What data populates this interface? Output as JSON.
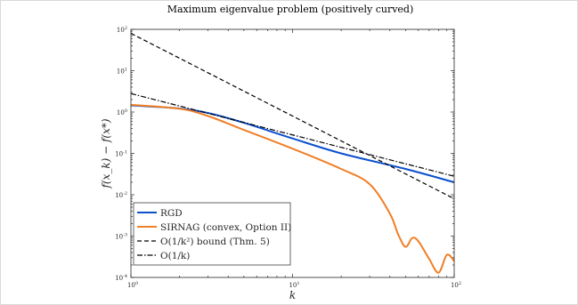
{
  "chart_data": {
    "type": "line",
    "title": "Maximum eigenvalue problem (positively curved)",
    "xlabel": "k",
    "ylabel": "f(x_k) − f(x*)",
    "xscale": "log",
    "yscale": "log",
    "xlim": [
      1,
      100
    ],
    "ylim": [
      0.0001,
      100
    ],
    "grid": false,
    "legend_position": "bottom-left",
    "x_ticks": [
      {
        "value": 1,
        "base": "10",
        "exp": "0"
      },
      {
        "value": 10,
        "base": "10",
        "exp": "1"
      },
      {
        "value": 100,
        "base": "10",
        "exp": "2"
      }
    ],
    "y_ticks": [
      {
        "value": 0.0001,
        "base": "10",
        "exp": "-4"
      },
      {
        "value": 0.001,
        "base": "10",
        "exp": "-3"
      },
      {
        "value": 0.01,
        "base": "10",
        "exp": "-2"
      },
      {
        "value": 0.1,
        "base": "10",
        "exp": "-1"
      },
      {
        "value": 1,
        "base": "10",
        "exp": "0"
      },
      {
        "value": 10,
        "base": "10",
        "exp": "1"
      },
      {
        "value": 100,
        "base": "10",
        "exp": "2"
      }
    ],
    "series": [
      {
        "name": "RGD",
        "color": "#0b4fce",
        "style": "solid",
        "x": [
          1,
          2,
          3,
          5,
          10,
          20,
          50,
          100
        ],
        "y": [
          1.45,
          1.22,
          0.95,
          0.55,
          0.23,
          0.1,
          0.042,
          0.02
        ]
      },
      {
        "name": "SIRNAG (convex, Option II)",
        "color": "#f07f26",
        "style": "solid",
        "x": [
          1,
          2,
          3,
          5,
          10,
          20,
          30,
          40,
          45,
          50,
          55,
          60,
          70,
          80,
          90,
          100
        ],
        "y": [
          1.5,
          1.2,
          0.8,
          0.37,
          0.13,
          0.042,
          0.018,
          0.0035,
          0.0011,
          0.00055,
          0.0009,
          0.00075,
          0.00028,
          0.00013,
          0.00035,
          0.00025
        ]
      },
      {
        "name": "O(1/k²) bound (Thm. 5)",
        "color": "#000000",
        "style": "dashed",
        "x": [
          1,
          100
        ],
        "y": [
          80,
          0.008
        ]
      },
      {
        "name": "O(1/k)",
        "color": "#000000",
        "style": "dashdot",
        "x": [
          1,
          100
        ],
        "y": [
          2.8,
          0.028
        ]
      }
    ],
    "legend": [
      {
        "label": "RGD",
        "series": 0
      },
      {
        "label": "SIRNAG (convex, Option II)",
        "series": 1
      },
      {
        "label": "O(1/k²) bound (Thm. 5)",
        "series": 2
      },
      {
        "label": "O(1/k)",
        "series": 3
      }
    ]
  }
}
